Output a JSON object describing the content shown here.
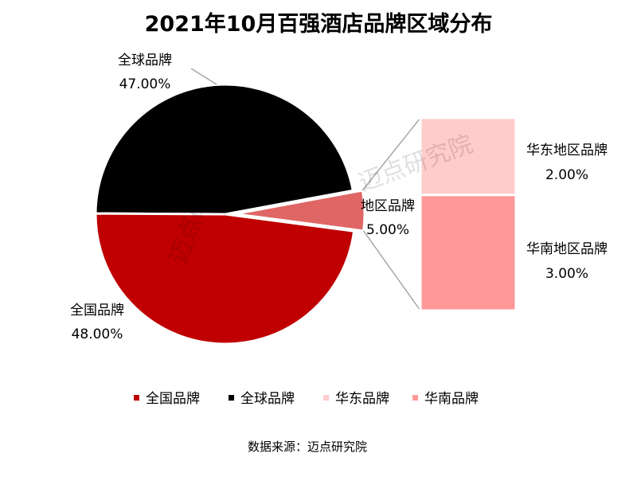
{
  "chart_data": {
    "type": "pie",
    "title": "2021年10月百强酒店品牌区域分布",
    "slices": [
      {
        "label": "全国品牌",
        "value": 48.0,
        "value_label": "48.00%",
        "color": "#c00000"
      },
      {
        "label": "全球品牌",
        "value": 47.0,
        "value_label": "47.00%",
        "color": "#000000"
      },
      {
        "label": "地区品牌",
        "value": 5.0,
        "value_label": "5.00%",
        "color": "#e06666"
      }
    ],
    "breakdown": {
      "of": "地区品牌",
      "bars": [
        {
          "label": "华东地区品牌",
          "value": 2.0,
          "value_label": "2.00%",
          "color": "#ffcccc"
        },
        {
          "label": "华南地区品牌",
          "value": 3.0,
          "value_label": "3.00%",
          "color": "#ff9999"
        }
      ]
    },
    "legend": {
      "position": "bottom",
      "items": [
        {
          "label": "全国品牌",
          "color": "#c00000"
        },
        {
          "label": "全球品牌",
          "color": "#000000"
        },
        {
          "label": "华东品牌",
          "color": "#ffcccc"
        },
        {
          "label": "华南品牌",
          "color": "#ff9999"
        }
      ]
    },
    "source": "数据来源：迈点研究院",
    "watermark": "迈点研究院"
  }
}
